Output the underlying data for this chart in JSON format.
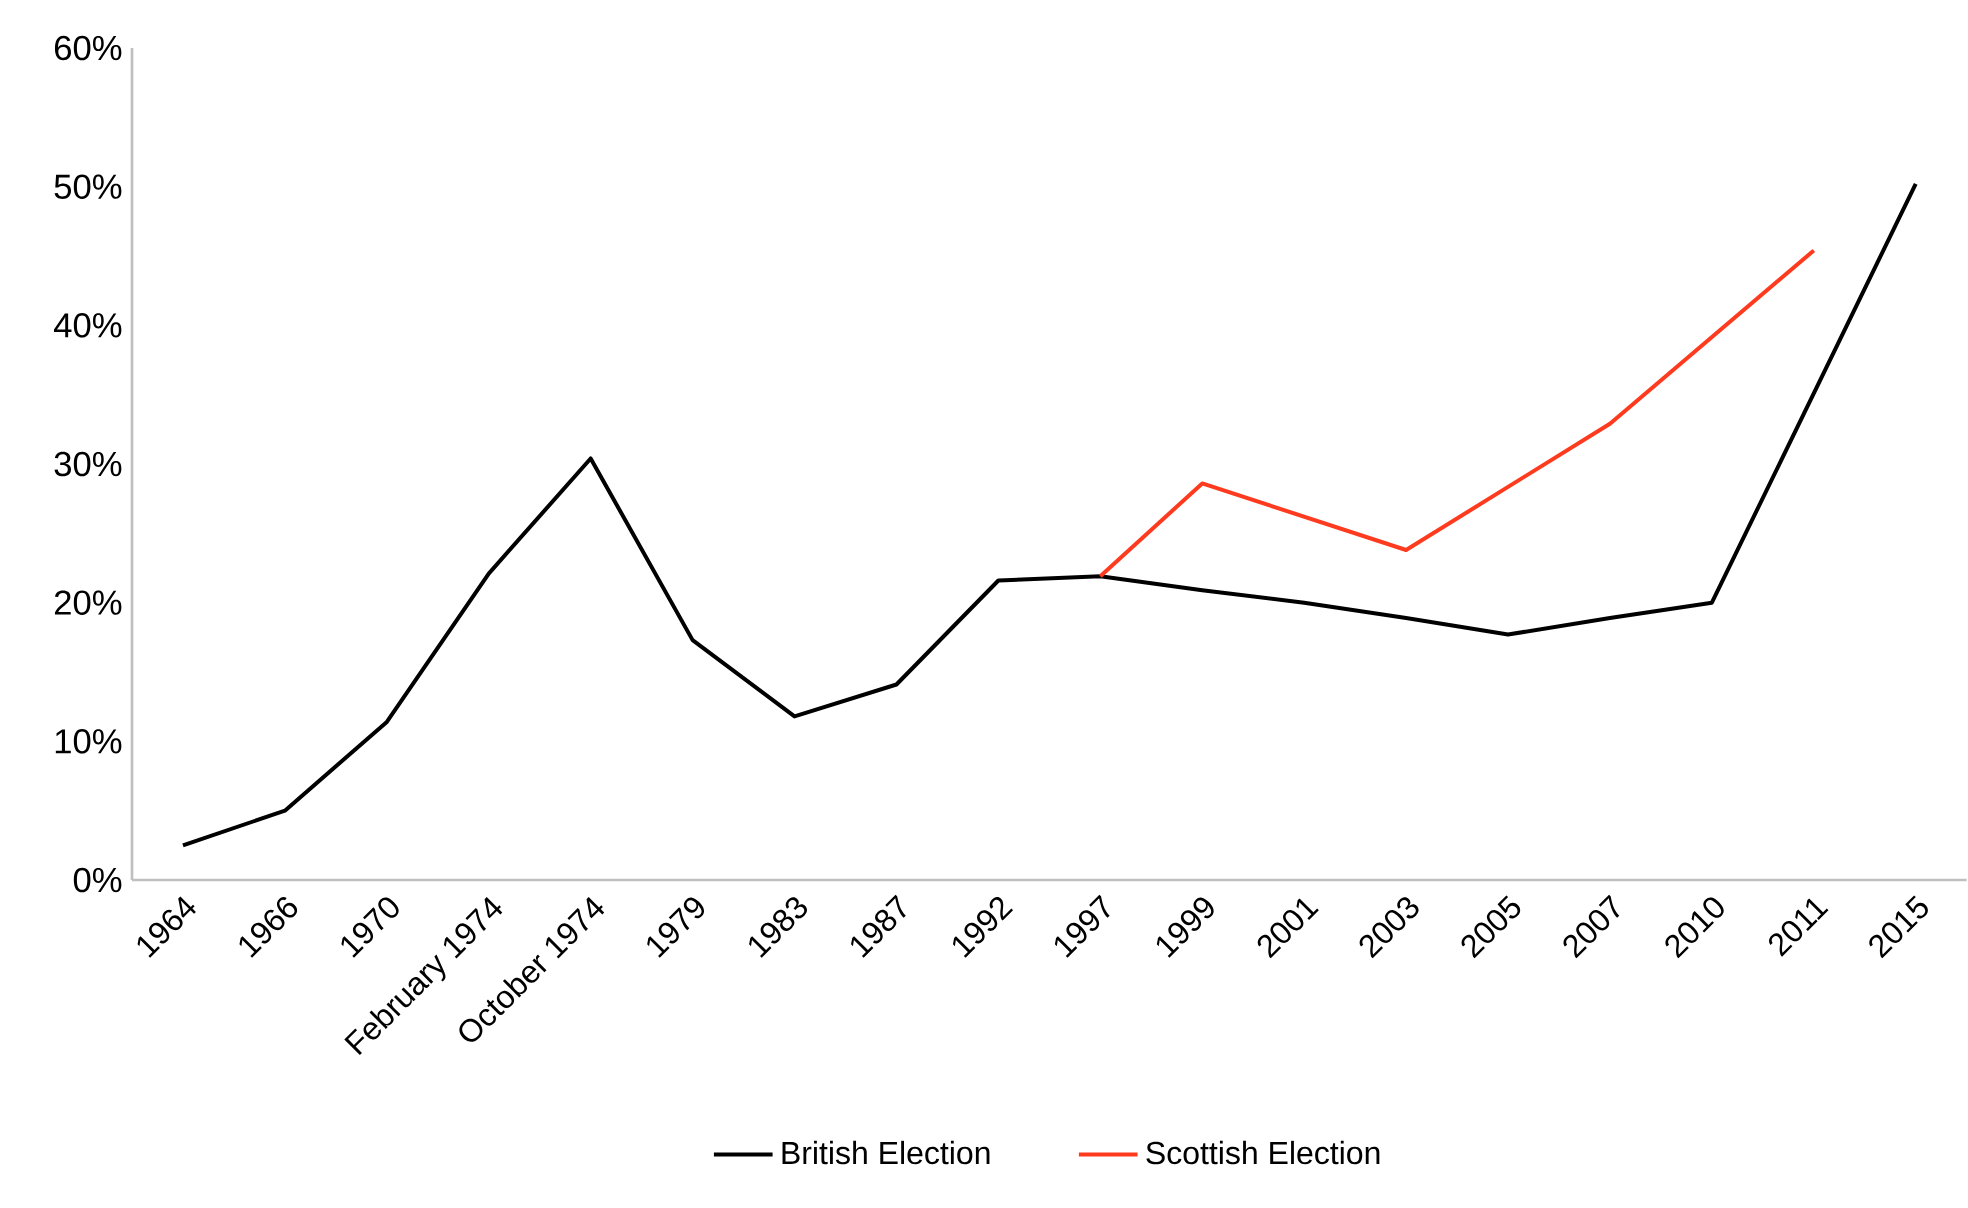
{
  "chart_data": {
    "type": "line",
    "categories": [
      "1964",
      "1966",
      "1970",
      "February 1974",
      "October 1974",
      "1979",
      "1983",
      "1987",
      "1992",
      "1997",
      "1999",
      "2001",
      "2003",
      "2005",
      "2007",
      "2010",
      "2011",
      "2015"
    ],
    "series": [
      {
        "name": "British Election",
        "color": "#000000",
        "values": [
          2.5,
          5.0,
          11.4,
          22.1,
          30.4,
          17.3,
          11.8,
          14.1,
          21.6,
          21.9,
          20.9,
          20.0,
          18.9,
          17.7,
          18.9,
          20.0,
          null,
          50.2
        ]
      },
      {
        "name": "Scottish Election",
        "color": "#ff3b1f",
        "values": [
          null,
          null,
          null,
          null,
          null,
          null,
          null,
          null,
          null,
          21.9,
          28.6,
          null,
          23.8,
          null,
          32.9,
          null,
          45.4,
          null
        ]
      }
    ],
    "ylim": [
      0,
      60
    ],
    "yticks": [
      {
        "value": 0,
        "label": "0%"
      },
      {
        "value": 10,
        "label": "10%"
      },
      {
        "value": 20,
        "label": "20%"
      },
      {
        "value": 30,
        "label": "30%"
      },
      {
        "value": 40,
        "label": "40%"
      },
      {
        "value": 50,
        "label": "50%"
      },
      {
        "value": 60,
        "label": "60%"
      }
    ],
    "grid": false,
    "legend": "bottom",
    "marker": "none",
    "line_style": "solid"
  }
}
